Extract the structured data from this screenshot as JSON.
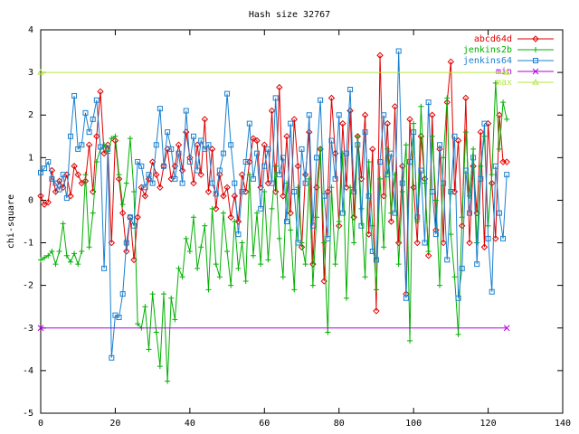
{
  "chart_data": {
    "type": "line",
    "title": "Hash size 32767",
    "ylabel": "chi-square",
    "xlim": [
      0,
      140
    ],
    "xticks": [
      0,
      20,
      40,
      60,
      80,
      100,
      120,
      140
    ],
    "ylim": [
      -5,
      4
    ],
    "yticks": [
      -5,
      -4,
      -3,
      -2,
      -1,
      0,
      1,
      2,
      3,
      4
    ],
    "legend": "top-right",
    "series": [
      {
        "name": "abcd64d",
        "color": "#e00000",
        "marker": "diamond",
        "x": [
          0,
          1,
          2,
          3,
          4,
          5,
          6,
          7,
          8,
          9,
          10,
          11,
          12,
          13,
          14,
          15,
          16,
          17,
          18,
          19,
          20,
          21,
          22,
          23,
          24,
          25,
          26,
          27,
          28,
          29,
          30,
          31,
          32,
          33,
          34,
          35,
          36,
          37,
          38,
          39,
          40,
          41,
          42,
          43,
          44,
          45,
          46,
          47,
          48,
          49,
          50,
          51,
          52,
          53,
          54,
          55,
          56,
          57,
          58,
          59,
          60,
          61,
          62,
          63,
          64,
          65,
          66,
          67,
          68,
          69,
          70,
          71,
          72,
          73,
          74,
          75,
          76,
          77,
          78,
          79,
          80,
          81,
          82,
          83,
          84,
          85,
          86,
          87,
          88,
          89,
          90,
          91,
          92,
          93,
          94,
          95,
          96,
          97,
          98,
          99,
          100,
          101,
          102,
          103,
          104,
          105,
          106,
          107,
          108,
          109,
          110,
          111,
          112,
          113,
          114,
          115,
          116,
          117,
          118,
          119,
          120,
          121,
          122,
          123,
          124,
          125
        ],
        "values": [
          0.1,
          -0.1,
          -0.05,
          0.7,
          0.2,
          0.45,
          0.3,
          0.6,
          0.1,
          0.8,
          0.6,
          0.4,
          0.45,
          1.3,
          0.2,
          1.5,
          2.55,
          1.1,
          1.3,
          -1.0,
          1.4,
          0.5,
          -0.3,
          -1.2,
          -0.4,
          -1.4,
          -0.4,
          0.3,
          0.1,
          0.5,
          0.9,
          0.6,
          0.3,
          0.8,
          1.2,
          0.5,
          0.8,
          1.3,
          0.7,
          1.6,
          1.0,
          0.4,
          1.3,
          0.6,
          1.9,
          0.2,
          1.2,
          -0.2,
          0.6,
          0.1,
          0.3,
          -0.4,
          0.1,
          -0.5,
          0.6,
          0.2,
          0.9,
          1.45,
          1.4,
          0.3,
          1.3,
          0.4,
          2.1,
          0.2,
          2.65,
          0.1,
          1.5,
          -0.3,
          1.9,
          0.8,
          -1.1,
          0.6,
          1.6,
          -1.5,
          0.3,
          1.2,
          -1.9,
          0.2,
          2.4,
          1.1,
          -0.6,
          1.8,
          0.3,
          2.1,
          -0.4,
          1.5,
          0.5,
          2.0,
          -0.8,
          1.2,
          -2.6,
          3.4,
          0.1,
          1.8,
          -0.5,
          2.2,
          -1.0,
          0.8,
          -2.2,
          1.9,
          0.3,
          -1.0,
          1.5,
          0.5,
          -1.3,
          2.0,
          -0.7,
          1.2,
          -1.0,
          2.3,
          3.25,
          0.2,
          1.4,
          -0.6,
          2.4,
          -1.0,
          0.8,
          -0.3,
          1.6,
          -1.1,
          1.8,
          0.4,
          -0.9,
          2.0,
          0.9,
          0.9
        ]
      },
      {
        "name": "jenkins2b",
        "color": "#00b000",
        "marker": "plus",
        "x": [
          0,
          1,
          2,
          3,
          4,
          5,
          6,
          7,
          8,
          9,
          10,
          11,
          12,
          13,
          14,
          15,
          16,
          17,
          18,
          19,
          20,
          21,
          22,
          23,
          24,
          25,
          26,
          27,
          28,
          29,
          30,
          31,
          32,
          33,
          34,
          35,
          36,
          37,
          38,
          39,
          40,
          41,
          42,
          43,
          44,
          45,
          46,
          47,
          48,
          49,
          50,
          51,
          52,
          53,
          54,
          55,
          56,
          57,
          58,
          59,
          60,
          61,
          62,
          63,
          64,
          65,
          66,
          67,
          68,
          69,
          70,
          71,
          72,
          73,
          74,
          75,
          76,
          77,
          78,
          79,
          80,
          81,
          82,
          83,
          84,
          85,
          86,
          87,
          88,
          89,
          90,
          91,
          92,
          93,
          94,
          95,
          96,
          97,
          98,
          99,
          100,
          101,
          102,
          103,
          104,
          105,
          106,
          107,
          108,
          109,
          110,
          111,
          112,
          113,
          114,
          115,
          116,
          117,
          118,
          119,
          120,
          121,
          122,
          123,
          124,
          125
        ],
        "values": [
          -1.4,
          -1.35,
          -1.3,
          -1.2,
          -1.5,
          -1.2,
          -0.55,
          -1.3,
          -1.45,
          -1.25,
          -1.5,
          -1.2,
          0.6,
          -1.1,
          -0.3,
          0.9,
          1.2,
          1.3,
          1.1,
          1.45,
          1.5,
          0.6,
          -0.1,
          0.4,
          1.45,
          0.2,
          -2.9,
          -3.0,
          -2.5,
          -3.5,
          -2.2,
          -3.1,
          -3.9,
          -2.2,
          -4.25,
          -2.3,
          -2.8,
          -1.6,
          -1.8,
          -0.9,
          -1.2,
          -0.4,
          -1.6,
          -1.1,
          -0.6,
          -2.1,
          -0.2,
          -1.5,
          -1.8,
          -0.3,
          -1.2,
          -2.0,
          -0.5,
          -1.6,
          -1.0,
          -1.9,
          0.6,
          -1.3,
          -0.3,
          -1.5,
          0.2,
          -1.4,
          -0.2,
          0.8,
          -0.9,
          -1.8,
          0.4,
          -0.7,
          -2.1,
          0.3,
          -1.0,
          -1.5,
          0.5,
          -2.0,
          -0.4,
          1.2,
          -1.0,
          -3.1,
          0.3,
          -1.5,
          -0.5,
          1.1,
          -2.3,
          0.3,
          -1.0,
          1.5,
          -0.2,
          -1.8,
          0.9,
          -0.6,
          -2.1,
          0.5,
          -1.1,
          1.2,
          -0.3,
          0.6,
          -1.5,
          0.2,
          1.3,
          -3.3,
          1.8,
          -0.5,
          2.2,
          0.4,
          -1.2,
          1.5,
          0.0,
          -2.0,
          1.0,
          2.4,
          -0.8,
          -1.8,
          -3.15,
          -0.4,
          1.6,
          0.1,
          1.2,
          -1.0,
          0.8,
          1.5,
          -0.6,
          0.6,
          2.75,
          1.2,
          2.3,
          1.9
        ]
      },
      {
        "name": "jenkins64",
        "color": "#1a80d0",
        "marker": "square",
        "x": [
          0,
          1,
          2,
          3,
          4,
          5,
          6,
          7,
          8,
          9,
          10,
          11,
          12,
          13,
          14,
          15,
          16,
          17,
          18,
          19,
          20,
          21,
          22,
          23,
          24,
          25,
          26,
          27,
          28,
          29,
          30,
          31,
          32,
          33,
          34,
          35,
          36,
          37,
          38,
          39,
          40,
          41,
          42,
          43,
          44,
          45,
          46,
          47,
          48,
          49,
          50,
          51,
          52,
          53,
          54,
          55,
          56,
          57,
          58,
          59,
          60,
          61,
          62,
          63,
          64,
          65,
          66,
          67,
          68,
          69,
          70,
          71,
          72,
          73,
          74,
          75,
          76,
          77,
          78,
          79,
          80,
          81,
          82,
          83,
          84,
          85,
          86,
          87,
          88,
          89,
          90,
          91,
          92,
          93,
          94,
          95,
          96,
          97,
          98,
          99,
          100,
          101,
          102,
          103,
          104,
          105,
          106,
          107,
          108,
          109,
          110,
          111,
          112,
          113,
          114,
          115,
          116,
          117,
          118,
          119,
          120,
          121,
          122,
          123,
          124,
          125
        ],
        "values": [
          0.65,
          0.75,
          0.9,
          0.5,
          0.4,
          0.25,
          0.6,
          0.05,
          1.5,
          2.45,
          1.2,
          1.3,
          2.05,
          1.6,
          1.9,
          2.35,
          1.25,
          -1.6,
          1.2,
          -3.7,
          -2.7,
          -2.75,
          -2.2,
          -1.0,
          -0.4,
          -0.6,
          0.9,
          0.8,
          0.3,
          0.6,
          0.4,
          1.3,
          2.15,
          0.8,
          1.6,
          1.2,
          0.5,
          1.1,
          0.4,
          2.1,
          0.9,
          1.5,
          0.7,
          1.4,
          1.2,
          1.3,
          0.4,
          0.15,
          0.7,
          1.1,
          2.5,
          1.3,
          0.4,
          -0.8,
          0.2,
          0.9,
          1.8,
          0.5,
          1.1,
          -0.2,
          0.8,
          1.2,
          0.4,
          2.4,
          0.6,
          1.0,
          -0.5,
          1.8,
          0.2,
          -1.0,
          1.2,
          0.4,
          2.0,
          -0.6,
          1.0,
          2.35,
          0.1,
          -0.9,
          1.4,
          0.5,
          2.0,
          -0.3,
          1.1,
          2.6,
          0.2,
          1.3,
          -0.6,
          1.6,
          0.1,
          -1.2,
          -1.4,
          0.9,
          2.0,
          0.6,
          1.1,
          -0.3,
          3.5,
          0.4,
          -2.3,
          0.9,
          1.6,
          -0.4,
          0.7,
          -1.0,
          2.3,
          0.2,
          -0.8,
          1.3,
          0.4,
          -1.4,
          0.2,
          1.5,
          -2.3,
          -1.6,
          0.7,
          -0.3,
          1.0,
          -1.5,
          0.5,
          1.8,
          -0.9,
          -2.15,
          0.8,
          -0.3,
          -0.9,
          0.6
        ]
      },
      {
        "name": "min",
        "color": "#b000e0",
        "marker": "cross",
        "x": [
          0,
          125
        ],
        "values": [
          -3,
          -3
        ]
      },
      {
        "name": "max",
        "color": "#b8e840",
        "marker": "triangle",
        "x": [
          0,
          125
        ],
        "values": [
          3,
          3
        ]
      }
    ]
  }
}
